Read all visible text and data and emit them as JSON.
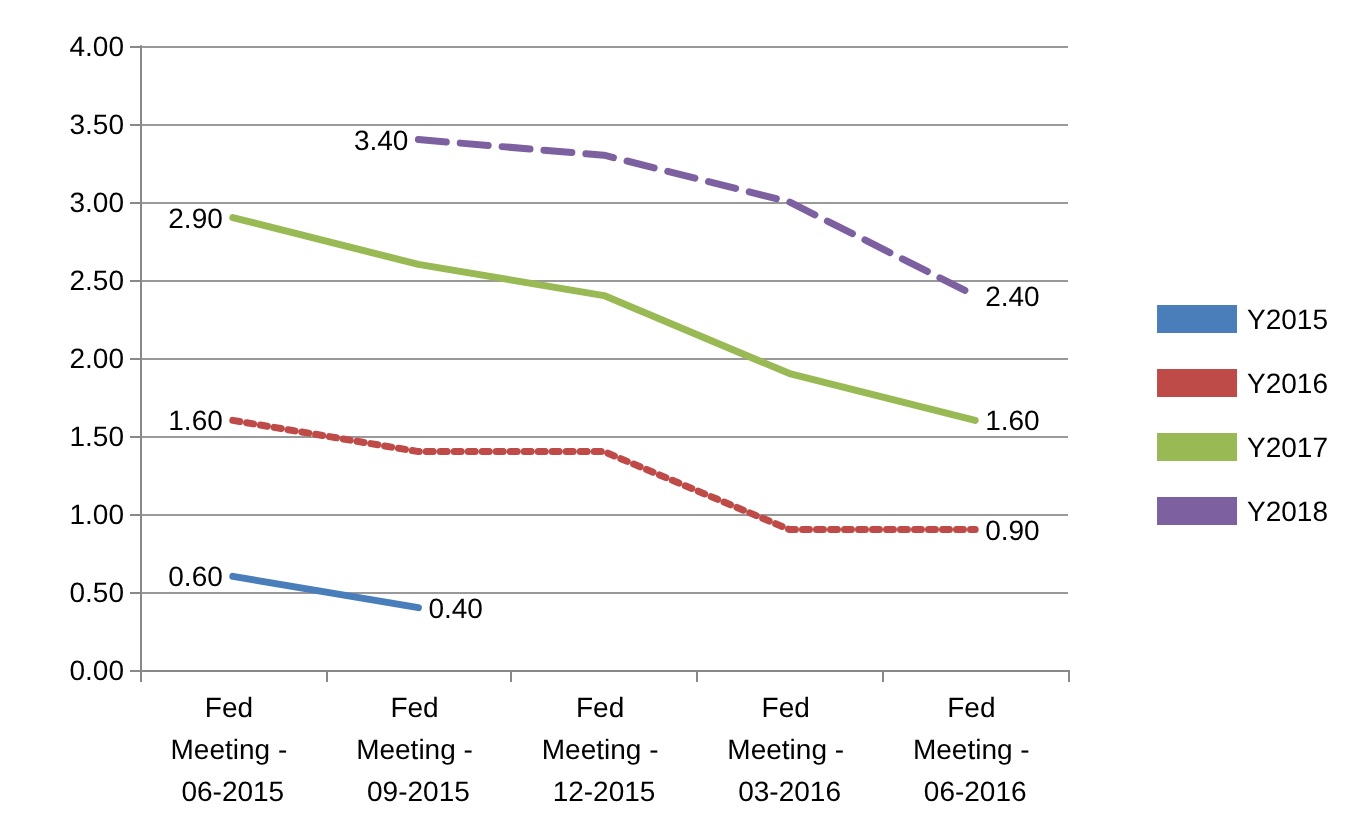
{
  "chart_data": {
    "type": "line",
    "categories": [
      "Fed Meeting - 06-2015",
      "Fed Meeting - 09-2015",
      "Fed Meeting - 12-2015",
      "Fed Meeting - 03-2016",
      "Fed Meeting - 06-2016"
    ],
    "series": [
      {
        "name": "Y2015",
        "color": "#4a7ebb",
        "line_style": "solid",
        "values": [
          0.6,
          0.4,
          null,
          null,
          null
        ],
        "value_labels": [
          "0.60",
          "0.40",
          null,
          null,
          null
        ]
      },
      {
        "name": "Y2016",
        "color": "#be4b48",
        "line_style": "dotted",
        "values": [
          1.6,
          1.4,
          1.4,
          0.9,
          0.9
        ],
        "value_labels": [
          "1.60",
          null,
          null,
          null,
          "0.90"
        ]
      },
      {
        "name": "Y2017",
        "color": "#98b954",
        "line_style": "solid",
        "values": [
          2.9,
          2.6,
          2.4,
          1.9,
          1.6
        ],
        "value_labels": [
          "2.90",
          null,
          null,
          null,
          "1.60"
        ]
      },
      {
        "name": "Y2018",
        "color": "#7d60a0",
        "line_style": "dashed",
        "values": [
          null,
          3.4,
          3.3,
          3.0,
          2.4
        ],
        "value_labels": [
          null,
          "3.40",
          null,
          null,
          "2.40"
        ]
      }
    ],
    "ylim": [
      0,
      4
    ],
    "yticks": [
      {
        "value": 0,
        "label": "0.00"
      },
      {
        "value": 0.5,
        "label": "0.50"
      },
      {
        "value": 1,
        "label": "1.00"
      },
      {
        "value": 1.5,
        "label": "1.50"
      },
      {
        "value": 2,
        "label": "2.00"
      },
      {
        "value": 2.5,
        "label": "2.50"
      },
      {
        "value": 3,
        "label": "3.00"
      },
      {
        "value": 3.5,
        "label": "3.50"
      },
      {
        "value": 4,
        "label": "4.00"
      }
    ],
    "grid": "y",
    "legend": "right",
    "marker": "none"
  }
}
